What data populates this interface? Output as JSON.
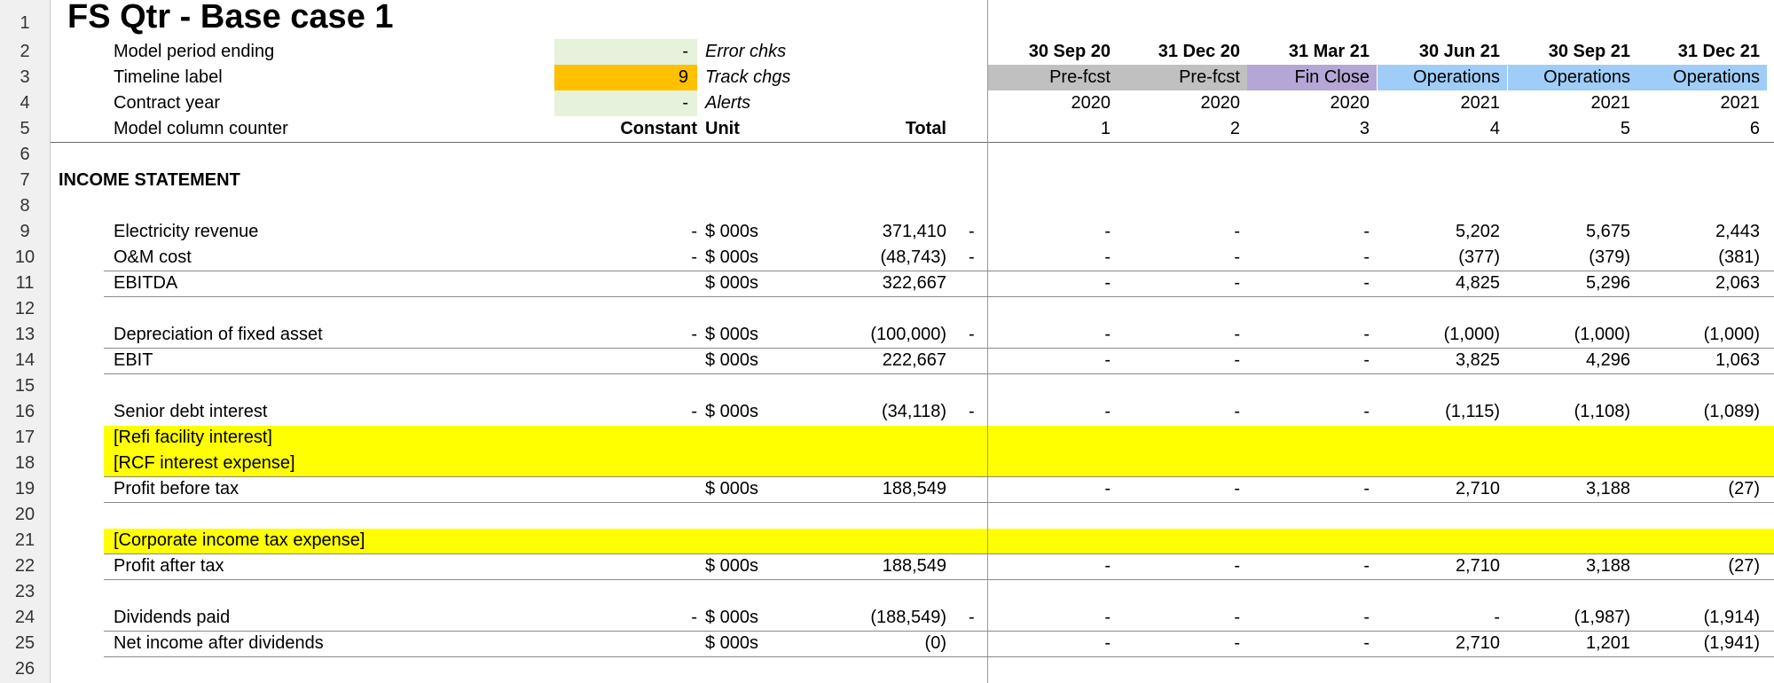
{
  "colors": {
    "highlight_yellow": "#ffff00",
    "timeline_orange": "#ffc000",
    "light_green": "#e6f2dc",
    "prefcst_gray": "#c0c0c0",
    "finclose_purple": "#b4a7d6",
    "operations_blue": "#9fcdf7"
  },
  "row_numbers": [
    "1",
    "2",
    "3",
    "4",
    "5",
    "6",
    "7",
    "8",
    "9",
    "10",
    "11",
    "12",
    "13",
    "14",
    "15",
    "16",
    "17",
    "18",
    "19",
    "20",
    "21",
    "22",
    "23",
    "24",
    "25",
    "26"
  ],
  "title": "FS Qtr - Base case 1",
  "header": {
    "period_ending_label": "Model period ending",
    "period_ending_value": "-",
    "error_chks": "Error chks",
    "timeline_label": "Timeline label",
    "timeline_value": "9",
    "track_chgs": "Track chgs",
    "contract_year_label": "Contract year",
    "contract_year_value": "-",
    "alerts": "Alerts",
    "column_counter_label": "Model column counter",
    "constant_label": "Constant",
    "unit_label": "Unit",
    "total_label": "Total"
  },
  "periods": [
    {
      "date": "30 Sep 20",
      "label": "Pre-fcst",
      "year": "2020",
      "counter": "1",
      "color": "#c0c0c0"
    },
    {
      "date": "31 Dec 20",
      "label": "Pre-fcst",
      "year": "2020",
      "counter": "2",
      "color": "#c0c0c0"
    },
    {
      "date": "31 Mar 21",
      "label": "Fin Close",
      "year": "2020",
      "counter": "3",
      "color": "#b4a7d6"
    },
    {
      "date": "30 Jun 21",
      "label": "Operations",
      "year": "2021",
      "counter": "4",
      "color": "#9fcdf7"
    },
    {
      "date": "30 Sep 21",
      "label": "Operations",
      "year": "2021",
      "counter": "5",
      "color": "#9fcdf7"
    },
    {
      "date": "31 Dec 21",
      "label": "Operations",
      "year": "2021",
      "counter": "6",
      "color": "#9fcdf7"
    }
  ],
  "section": "INCOME STATEMENT",
  "lines": [
    {
      "row": 9,
      "label": "Electricity revenue",
      "constant": "-",
      "unit": "$ 000s",
      "total": "371,410",
      "flag": "-",
      "values": [
        "-",
        "-",
        "-",
        "5,202",
        "5,675",
        "2,443"
      ]
    },
    {
      "row": 10,
      "label": "O&M cost",
      "constant": "-",
      "unit": "$ 000s",
      "total": "(48,743)",
      "flag": "-",
      "values": [
        "-",
        "-",
        "-",
        "(377)",
        "(379)",
        "(381)"
      ]
    },
    {
      "row": 11,
      "label": "EBITDA",
      "constant": "",
      "unit": "$ 000s",
      "total": "322,667",
      "flag": "",
      "values": [
        "-",
        "-",
        "-",
        "4,825",
        "5,296",
        "2,063"
      ]
    },
    {
      "row": 13,
      "label": "Depreciation of fixed asset",
      "constant": "-",
      "unit": "$ 000s",
      "total": "(100,000)",
      "flag": "-",
      "values": [
        "-",
        "-",
        "-",
        "(1,000)",
        "(1,000)",
        "(1,000)"
      ]
    },
    {
      "row": 14,
      "label": "EBIT",
      "constant": "",
      "unit": "$ 000s",
      "total": "222,667",
      "flag": "",
      "values": [
        "-",
        "-",
        "-",
        "3,825",
        "4,296",
        "1,063"
      ]
    },
    {
      "row": 16,
      "label": "Senior debt interest",
      "constant": "-",
      "unit": "$ 000s",
      "total": "(34,118)",
      "flag": "-",
      "values": [
        "-",
        "-",
        "-",
        "(1,115)",
        "(1,108)",
        "(1,089)"
      ]
    },
    {
      "row": 17,
      "label": "[Refi facility interest]",
      "constant": "",
      "unit": "",
      "total": "",
      "flag": "",
      "values": [
        "",
        "",
        "",
        "",
        "",
        ""
      ]
    },
    {
      "row": 18,
      "label": "[RCF interest expense]",
      "constant": "",
      "unit": "",
      "total": "",
      "flag": "",
      "values": [
        "",
        "",
        "",
        "",
        "",
        ""
      ]
    },
    {
      "row": 19,
      "label": "Profit before tax",
      "constant": "",
      "unit": "$ 000s",
      "total": "188,549",
      "flag": "",
      "values": [
        "-",
        "-",
        "-",
        "2,710",
        "3,188",
        "(27)"
      ]
    },
    {
      "row": 21,
      "label": "[Corporate income tax expense]",
      "constant": "",
      "unit": "",
      "total": "",
      "flag": "",
      "values": [
        "",
        "",
        "",
        "",
        "",
        ""
      ]
    },
    {
      "row": 22,
      "label": "Profit after tax",
      "constant": "",
      "unit": "$ 000s",
      "total": "188,549",
      "flag": "",
      "values": [
        "-",
        "-",
        "-",
        "2,710",
        "3,188",
        "(27)"
      ]
    },
    {
      "row": 24,
      "label": "Dividends paid",
      "constant": "-",
      "unit": "$ 000s",
      "total": "(188,549)",
      "flag": "-",
      "values": [
        "-",
        "-",
        "-",
        "-",
        "(1,987)",
        "(1,914)"
      ]
    },
    {
      "row": 25,
      "label": "Net income after dividends",
      "constant": "",
      "unit": "$ 000s",
      "total": "(0)",
      "flag": "",
      "values": [
        "-",
        "-",
        "-",
        "2,710",
        "1,201",
        "(1,941)"
      ]
    }
  ]
}
